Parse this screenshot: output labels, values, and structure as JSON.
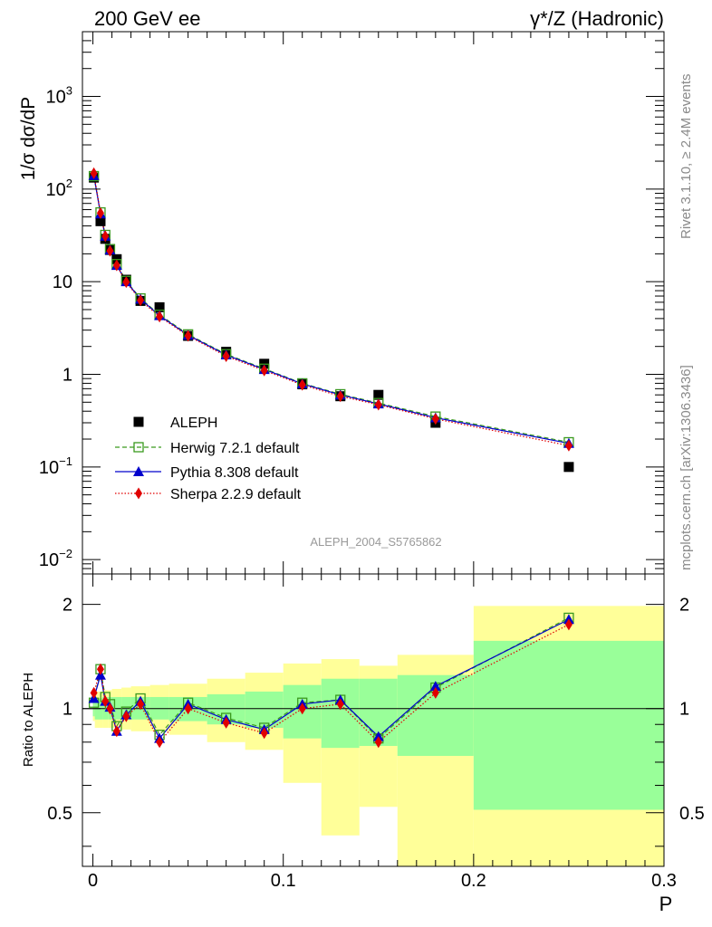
{
  "header": {
    "left": "200 GeV ee",
    "right": "γ*/Z (Hadronic)"
  },
  "side_text": {
    "rivet": "Rivet 3.1.10, ≥ 2.4M events",
    "mcplots": "mcplots.cern.ch [arXiv:1306.3436]"
  },
  "analysis_tag": "ALEPH_2004_S5765862",
  "colors": {
    "herwig": "#3a9a1e",
    "pythia": "#0000cc",
    "sherpa": "#e00000",
    "band_inner": "#99ff99",
    "band_outer": "#ffff99"
  },
  "chart_data": [
    {
      "type": "scatter",
      "ylabel": "1/σ dσ/dP",
      "yscale": "log",
      "ylim": [
        0.007,
        5000
      ],
      "xlim": [
        -0.0055,
        0.3
      ],
      "y_ticks": [
        {
          "value": 0.01,
          "label": "10",
          "sup": "−2"
        },
        {
          "value": 0.1,
          "label": "10",
          "sup": "−1"
        },
        {
          "value": 1,
          "label": "1",
          "sup": ""
        },
        {
          "value": 10,
          "label": "10",
          "sup": ""
        },
        {
          "value": 100,
          "label": "10",
          "sup": "2"
        },
        {
          "value": 1000,
          "label": "10",
          "sup": "3"
        }
      ],
      "x": [
        0.0005,
        0.004,
        0.0065,
        0.009,
        0.0125,
        0.0175,
        0.025,
        0.035,
        0.05,
        0.07,
        0.09,
        0.11,
        0.13,
        0.15,
        0.18,
        0.25
      ],
      "series": [
        {
          "name": "ALEPH",
          "key": "data",
          "marker": "square-filled",
          "values": [
            133,
            45,
            29,
            22,
            17.5,
            10.5,
            6.2,
            5.3,
            2.6,
            1.75,
            1.3,
            0.78,
            0.58,
            0.6,
            0.3,
            0.1
          ]
        },
        {
          "name": "Herwig 7.2.1 default",
          "key": "herwig",
          "marker": "square-open",
          "values": [
            138,
            56,
            32,
            22.5,
            15.5,
            10.2,
            6.6,
            4.4,
            2.7,
            1.65,
            1.15,
            0.8,
            0.61,
            0.49,
            0.35,
            0.185
          ]
        },
        {
          "name": "Pythia 8.308 default",
          "key": "pythia",
          "marker": "triangle",
          "values": [
            140,
            54,
            31,
            22,
            15,
            10,
            6.5,
            4.3,
            2.65,
            1.62,
            1.13,
            0.79,
            0.6,
            0.48,
            0.34,
            0.18
          ]
        },
        {
          "name": "Sherpa 2.2.9 default",
          "key": "sherpa",
          "marker": "diamond",
          "values": [
            148,
            55,
            31,
            21.5,
            15,
            9.9,
            6.3,
            4.2,
            2.6,
            1.57,
            1.1,
            0.77,
            0.58,
            0.47,
            0.33,
            0.17
          ]
        }
      ]
    },
    {
      "type": "scatter",
      "ylabel": "Ratio to ALEPH",
      "xlabel": "P",
      "yscale": "log",
      "ylim": [
        0.35,
        2.45
      ],
      "xlim": [
        -0.0055,
        0.3
      ],
      "y_ticks": [
        {
          "value": 0.5,
          "label": "0.5"
        },
        {
          "value": 1,
          "label": "1"
        },
        {
          "value": 2,
          "label": "2"
        }
      ],
      "x_ticks": [
        {
          "value": 0,
          "label": "0"
        },
        {
          "value": 0.1,
          "label": "0.1"
        },
        {
          "value": 0.2,
          "label": "0.2"
        },
        {
          "value": 0.3,
          "label": "0.3"
        }
      ],
      "reference": 1,
      "bins": [
        {
          "lo": 0.0,
          "hi": 0.001,
          "in": [
            0.95,
            1.05
          ],
          "out": [
            0.92,
            1.08
          ]
        },
        {
          "lo": 0.001,
          "hi": 0.005,
          "in": [
            0.93,
            1.07
          ],
          "out": [
            0.88,
            1.12
          ]
        },
        {
          "lo": 0.005,
          "hi": 0.008,
          "in": [
            0.93,
            1.08
          ],
          "out": [
            0.88,
            1.13
          ]
        },
        {
          "lo": 0.008,
          "hi": 0.01,
          "in": [
            0.93,
            1.08
          ],
          "out": [
            0.88,
            1.13
          ]
        },
        {
          "lo": 0.01,
          "hi": 0.015,
          "in": [
            0.93,
            1.08
          ],
          "out": [
            0.88,
            1.14
          ]
        },
        {
          "lo": 0.015,
          "hi": 0.02,
          "in": [
            0.93,
            1.08
          ],
          "out": [
            0.87,
            1.15
          ]
        },
        {
          "lo": 0.02,
          "hi": 0.03,
          "in": [
            0.93,
            1.08
          ],
          "out": [
            0.86,
            1.16
          ]
        },
        {
          "lo": 0.03,
          "hi": 0.04,
          "in": [
            0.93,
            1.08
          ],
          "out": [
            0.86,
            1.17
          ]
        },
        {
          "lo": 0.04,
          "hi": 0.06,
          "in": [
            0.92,
            1.08
          ],
          "out": [
            0.84,
            1.18
          ]
        },
        {
          "lo": 0.06,
          "hi": 0.08,
          "in": [
            0.9,
            1.1
          ],
          "out": [
            0.8,
            1.22
          ]
        },
        {
          "lo": 0.08,
          "hi": 0.1,
          "in": [
            0.88,
            1.12
          ],
          "out": [
            0.76,
            1.27
          ]
        },
        {
          "lo": 0.1,
          "hi": 0.12,
          "in": [
            0.82,
            1.17
          ],
          "out": [
            0.61,
            1.35
          ]
        },
        {
          "lo": 0.12,
          "hi": 0.14,
          "in": [
            0.77,
            1.22
          ],
          "out": [
            0.43,
            1.39
          ]
        },
        {
          "lo": 0.14,
          "hi": 0.16,
          "in": [
            0.78,
            1.22
          ],
          "out": [
            0.52,
            1.33
          ]
        },
        {
          "lo": 0.16,
          "hi": 0.2,
          "in": [
            0.73,
            1.25
          ],
          "out": [
            0.35,
            1.43
          ]
        },
        {
          "lo": 0.2,
          "hi": 0.3,
          "in": [
            0.51,
            1.57
          ],
          "out": [
            0.35,
            1.98
          ]
        }
      ],
      "series": [
        {
          "name": "Herwig 7.2.1 default",
          "key": "herwig",
          "values": [
            1.04,
            1.3,
            1.08,
            1.03,
            0.89,
            0.98,
            1.07,
            0.84,
            1.04,
            0.94,
            0.88,
            1.04,
            1.06,
            0.82,
            1.15,
            1.83
          ]
        },
        {
          "name": "Pythia 8.308 default",
          "key": "pythia",
          "values": [
            1.07,
            1.25,
            1.05,
            1.01,
            0.86,
            0.96,
            1.05,
            0.82,
            1.03,
            0.93,
            0.87,
            1.03,
            1.06,
            0.83,
            1.16,
            1.81
          ]
        },
        {
          "name": "Sherpa 2.2.9 default",
          "key": "sherpa",
          "values": [
            1.11,
            1.3,
            1.05,
            1.0,
            0.86,
            0.95,
            1.03,
            0.8,
            1.0,
            0.91,
            0.85,
            1.0,
            1.03,
            0.8,
            1.11,
            1.75
          ]
        }
      ]
    }
  ]
}
